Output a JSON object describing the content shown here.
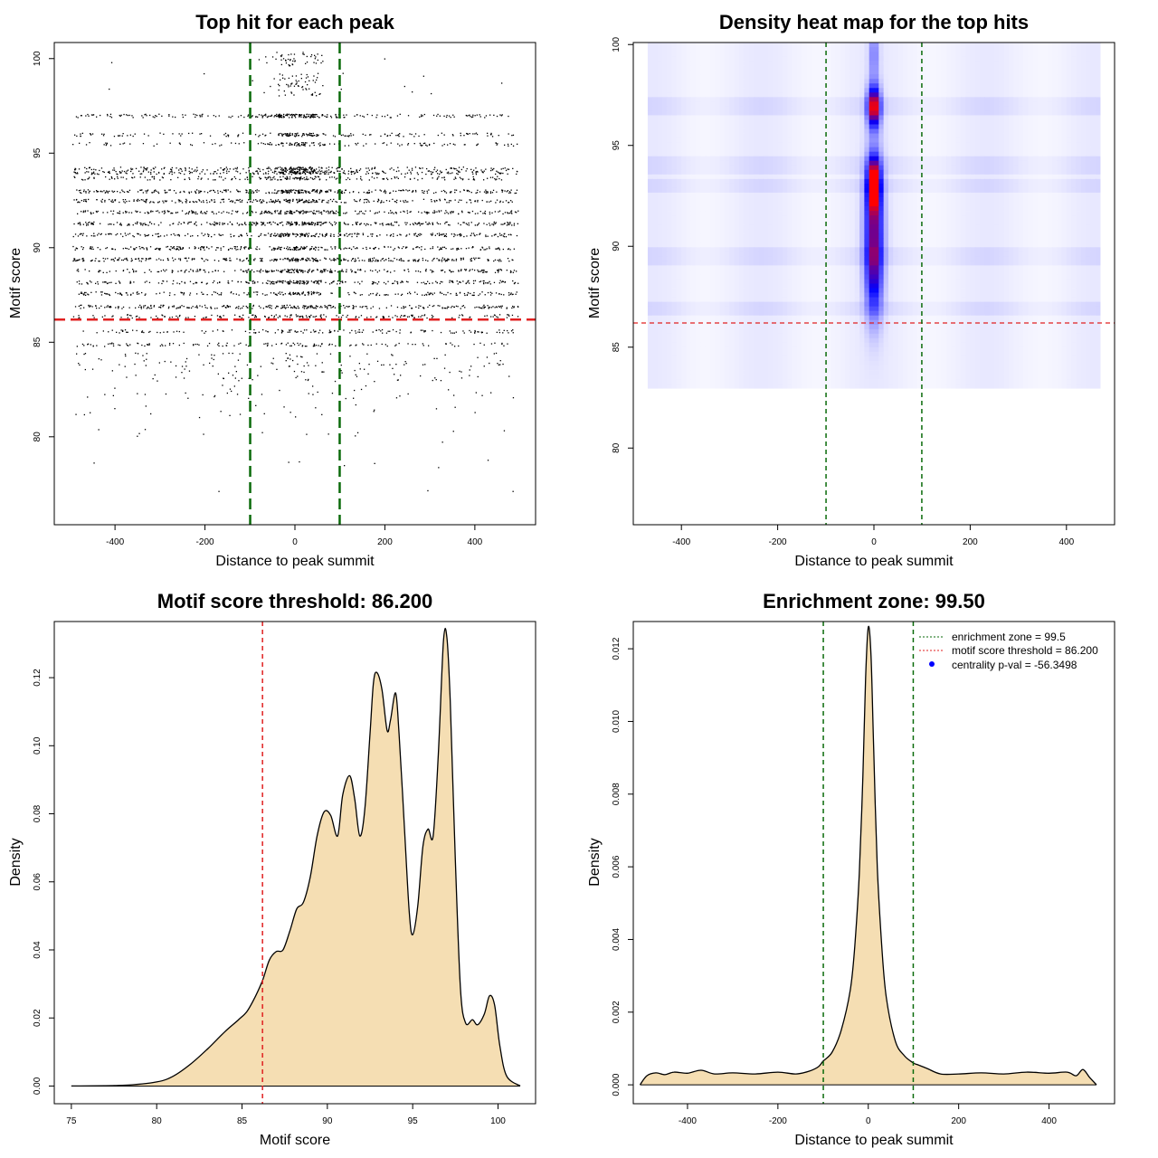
{
  "colors": {
    "threshold_line": "#e02020",
    "zone_line": "#0a6a0a",
    "density_fill": "#f5deb3",
    "heat_low": "#ffffff",
    "heat_mid": "#0000ff",
    "heat_high": "#ff0000",
    "legend_dot": "#0000ff",
    "points": "#000000"
  },
  "chart_data": [
    {
      "id": "scatter",
      "type": "scatter",
      "title": "Top hit for each peak",
      "xlabel": "Distance to peak summit",
      "ylabel": "Motif score",
      "xlim": [
        -535,
        535
      ],
      "ylim": [
        75.35,
        100.85
      ],
      "xticks": [
        -400,
        -200,
        0,
        200,
        400
      ],
      "xtick_labels": [
        "-400",
        "-200",
        "0",
        "200",
        "400"
      ],
      "yticks": [
        80,
        85,
        90,
        95,
        100
      ],
      "ytick_labels": [
        "80",
        "85",
        "90",
        "95",
        "100"
      ],
      "x_range": [
        -495,
        495
      ],
      "score_levels": [
        {
          "y": 100.0,
          "weight": 0.15,
          "central": 0.9
        },
        {
          "y": 98.9,
          "weight": 0.12,
          "central": 0.85
        },
        {
          "y": 98.4,
          "weight": 0.1,
          "central": 0.85
        },
        {
          "y": 97.0,
          "weight": 0.8,
          "central": 0.35
        },
        {
          "y": 96.0,
          "weight": 0.55,
          "central": 0.3
        },
        {
          "y": 95.5,
          "weight": 0.45,
          "central": 0.25
        },
        {
          "y": 94.2,
          "weight": 0.7,
          "central": 0.25
        },
        {
          "y": 94.0,
          "weight": 0.9,
          "central": 0.25
        },
        {
          "y": 93.7,
          "weight": 0.6,
          "central": 0.2
        },
        {
          "y": 93.0,
          "weight": 1.0,
          "central": 0.2
        },
        {
          "y": 92.5,
          "weight": 0.9,
          "central": 0.2
        },
        {
          "y": 91.9,
          "weight": 0.9,
          "central": 0.18
        },
        {
          "y": 91.3,
          "weight": 1.0,
          "central": 0.18
        },
        {
          "y": 90.7,
          "weight": 0.9,
          "central": 0.18
        },
        {
          "y": 90.0,
          "weight": 0.9,
          "central": 0.16
        },
        {
          "y": 89.4,
          "weight": 1.0,
          "central": 0.16
        },
        {
          "y": 88.8,
          "weight": 0.8,
          "central": 0.15
        },
        {
          "y": 88.2,
          "weight": 0.8,
          "central": 0.15
        },
        {
          "y": 87.6,
          "weight": 0.7,
          "central": 0.14
        },
        {
          "y": 86.9,
          "weight": 0.9,
          "central": 0.14
        },
        {
          "y": 86.4,
          "weight": 0.5,
          "central": 0.12
        },
        {
          "y": 85.6,
          "weight": 0.45,
          "central": 0.1
        },
        {
          "y": 84.9,
          "weight": 0.4,
          "central": 0.1
        },
        {
          "y": 84.1,
          "weight": 0.3,
          "central": 0.1
        },
        {
          "y": 83.3,
          "weight": 0.2,
          "central": 0.08
        },
        {
          "y": 82.4,
          "weight": 0.12,
          "central": 0.08
        },
        {
          "y": 81.4,
          "weight": 0.07,
          "central": 0.05
        },
        {
          "y": 80.1,
          "weight": 0.04,
          "central": 0.05
        },
        {
          "y": 78.5,
          "weight": 0.02,
          "central": 0.0
        },
        {
          "y": 77.0,
          "weight": 0.01,
          "central": 0.0
        }
      ],
      "hlines": [
        {
          "y": 86.2,
          "color": "threshold_line",
          "dash": "long"
        }
      ],
      "vlines": [
        {
          "x": -99.5,
          "color": "zone_line",
          "dash": "long"
        },
        {
          "x": 99.5,
          "color": "zone_line",
          "dash": "long"
        }
      ]
    },
    {
      "id": "heatmap",
      "type": "heatmap",
      "title": "Density heat map for the top hits",
      "xlabel": "Distance to peak summit",
      "ylabel": "Motif score",
      "xlim": [
        -500,
        500
      ],
      "ylim": [
        76.2,
        100.1
      ],
      "xticks": [
        -400,
        -200,
        0,
        200,
        400
      ],
      "xtick_labels": [
        "-400",
        "-200",
        "0",
        "200",
        "400"
      ],
      "yticks": [
        80,
        85,
        90,
        95,
        100
      ],
      "ytick_labels": [
        "80",
        "85",
        "90",
        "95",
        "100"
      ],
      "hotspots": [
        {
          "x": 0,
          "y": 96.9,
          "sx": 9,
          "sy": 0.7,
          "v": 1.0
        },
        {
          "x": 0,
          "y": 93.1,
          "sx": 9,
          "sy": 0.9,
          "v": 0.95
        },
        {
          "x": 0,
          "y": 91.0,
          "sx": 13,
          "sy": 2.2,
          "v": 0.6
        },
        {
          "x": 0,
          "y": 88.5,
          "sx": 12,
          "sy": 1.6,
          "v": 0.35
        },
        {
          "x": 0,
          "y": 99.5,
          "sx": 7,
          "sy": 1.0,
          "v": 0.25
        }
      ],
      "hlines": [
        {
          "y": 86.2,
          "color": "threshold_line",
          "dash": "short"
        }
      ],
      "vlines": [
        {
          "x": -99.5,
          "color": "zone_line",
          "dash": "short"
        },
        {
          "x": 99.5,
          "color": "zone_line",
          "dash": "short"
        }
      ]
    },
    {
      "id": "score-density",
      "type": "area",
      "title": "Motif score threshold: 86.200",
      "xlabel": "Motif score",
      "ylabel": "Density",
      "xlim": [
        74,
        102.2
      ],
      "ylim": [
        -0.0052,
        0.1365
      ],
      "xticks": [
        75,
        80,
        85,
        90,
        95,
        100
      ],
      "xtick_labels": [
        "75",
        "80",
        "85",
        "90",
        "95",
        "100"
      ],
      "yticks": [
        0.0,
        0.02,
        0.04,
        0.06,
        0.08,
        0.1,
        0.12
      ],
      "ytick_labels": [
        "0.00",
        "0.02",
        "0.04",
        "0.06",
        "0.08",
        "0.10",
        "0.12"
      ],
      "x": [
        75.0,
        78.0,
        80.0,
        81.0,
        82.0,
        83.0,
        84.0,
        84.8,
        85.3,
        85.8,
        86.2,
        86.6,
        87.0,
        87.4,
        87.8,
        88.2,
        88.6,
        89.0,
        89.4,
        89.8,
        90.2,
        90.6,
        90.9,
        91.3,
        91.6,
        91.9,
        92.2,
        92.5,
        92.7,
        92.9,
        93.2,
        93.5,
        93.7,
        94.0,
        94.2,
        94.5,
        94.8,
        95.0,
        95.3,
        95.6,
        95.9,
        96.2,
        96.5,
        96.8,
        97.0,
        97.2,
        97.5,
        97.8,
        98.1,
        98.5,
        98.8,
        99.2,
        99.5,
        99.8,
        100.1,
        100.5,
        101.3
      ],
      "y": [
        0.0,
        0.0002,
        0.0012,
        0.003,
        0.0065,
        0.011,
        0.016,
        0.0195,
        0.022,
        0.0265,
        0.031,
        0.037,
        0.0395,
        0.04,
        0.0455,
        0.052,
        0.054,
        0.0615,
        0.0735,
        0.0805,
        0.0795,
        0.0735,
        0.0855,
        0.0912,
        0.0845,
        0.0735,
        0.0815,
        0.1035,
        0.1185,
        0.1215,
        0.1165,
        0.1045,
        0.1075,
        0.1155,
        0.1035,
        0.0775,
        0.051,
        0.0445,
        0.053,
        0.0705,
        0.0755,
        0.0735,
        0.0975,
        0.1305,
        0.132,
        0.113,
        0.0665,
        0.0285,
        0.0185,
        0.0195,
        0.018,
        0.0212,
        0.0265,
        0.0238,
        0.012,
        0.003,
        0.0
      ],
      "vlines": [
        {
          "x": 86.2,
          "color": "threshold_line",
          "dash": "short"
        }
      ]
    },
    {
      "id": "distance-density",
      "type": "area",
      "title": "Enrichment zone: 99.50",
      "xlabel": "Distance to peak summit",
      "ylabel": "Density",
      "xlim": [
        -520,
        545
      ],
      "ylim": [
        -0.00052,
        0.01275
      ],
      "xticks": [
        -400,
        -200,
        0,
        200,
        400
      ],
      "xtick_labels": [
        "-400",
        "-200",
        "0",
        "200",
        "400"
      ],
      "yticks": [
        0.0,
        0.002,
        0.004,
        0.006,
        0.008,
        0.01,
        0.012
      ],
      "ytick_labels": [
        "0.000",
        "0.002",
        "0.004",
        "0.006",
        "0.008",
        "0.010",
        "0.012"
      ],
      "x": [
        -505,
        -490,
        -470,
        -450,
        -430,
        -400,
        -370,
        -340,
        -300,
        -250,
        -200,
        -160,
        -130,
        -110,
        -100,
        -80,
        -60,
        -40,
        -30,
        -20,
        -12,
        -6,
        0,
        6,
        12,
        20,
        30,
        40,
        60,
        80,
        100,
        110,
        130,
        160,
        200,
        250,
        300,
        350,
        400,
        440,
        460,
        475,
        490,
        505
      ],
      "y": [
        0.0,
        0.00025,
        0.00033,
        0.00028,
        0.00035,
        0.00032,
        0.0004,
        0.0003,
        0.00033,
        0.0003,
        0.00035,
        0.0003,
        0.00038,
        0.0005,
        0.00065,
        0.0009,
        0.0015,
        0.0026,
        0.0038,
        0.0058,
        0.0085,
        0.0112,
        0.0126,
        0.0118,
        0.0092,
        0.006,
        0.0038,
        0.0024,
        0.0012,
        0.0008,
        0.0006,
        0.00055,
        0.00045,
        0.0003,
        0.0003,
        0.00033,
        0.0003,
        0.00035,
        0.00032,
        0.00035,
        0.00025,
        0.00042,
        0.0002,
        0.0
      ],
      "vlines": [
        {
          "x": -99.5,
          "color": "zone_line",
          "dash": "short"
        },
        {
          "x": 99.5,
          "color": "zone_line",
          "dash": "short"
        }
      ],
      "legend": {
        "position": "top-right",
        "entries": [
          {
            "label": "enrichment zone = 99.5",
            "kind": "line",
            "color": "zone_line"
          },
          {
            "label": "motif score threshold = 86.200",
            "kind": "line",
            "color": "threshold_line"
          },
          {
            "label": "centrality p-val = -56.3498",
            "kind": "point",
            "color": "legend_dot"
          }
        ]
      }
    }
  ]
}
